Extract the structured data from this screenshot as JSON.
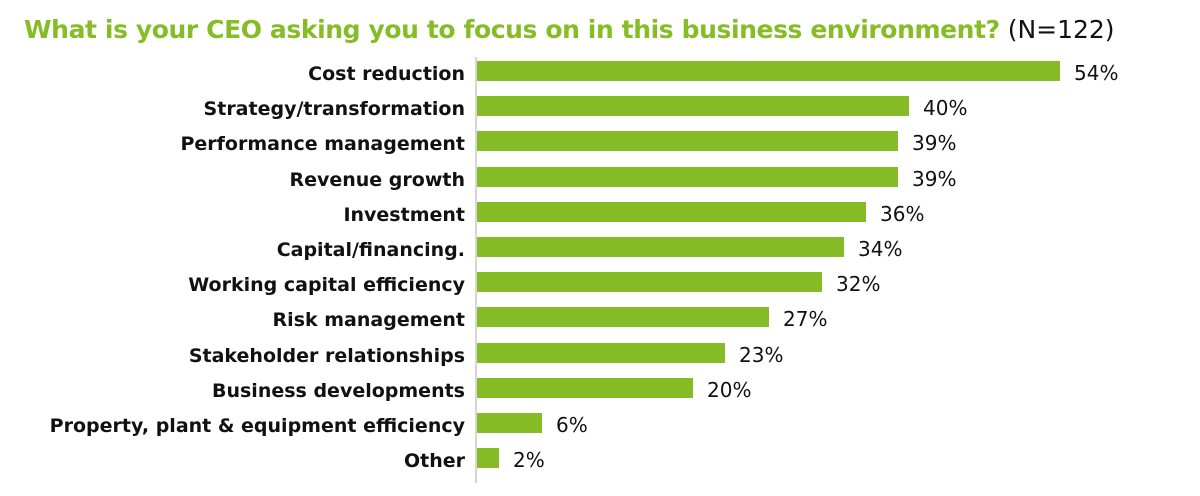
{
  "title": {
    "question": "What is your CEO asking you to focus on in this business environment?",
    "sample": "(N=122)"
  },
  "colors": {
    "bar": "#86bc25",
    "title": "#86bc25",
    "axis": "#d6d6d6"
  },
  "rows": [
    {
      "label": "Cost reduction",
      "value": "54%"
    },
    {
      "label": "Strategy/transformation",
      "value": "40%"
    },
    {
      "label": "Performance management",
      "value": "39%"
    },
    {
      "label": "Revenue growth",
      "value": "39%"
    },
    {
      "label": "Investment",
      "value": "36%"
    },
    {
      "label": "Capital/financing.",
      "value": "34%"
    },
    {
      "label": "Working capital efficiency",
      "value": "32%"
    },
    {
      "label": "Risk management",
      "value": "27%"
    },
    {
      "label": "Stakeholder relationships",
      "value": "23%"
    },
    {
      "label": "Business developments",
      "value": "20%"
    },
    {
      "label": "Property, plant & equipment efficiency",
      "value": "6%"
    },
    {
      "label": "Other",
      "value": "2%"
    }
  ],
  "chart_data": {
    "type": "bar",
    "orientation": "horizontal",
    "title": "What is your CEO asking you to focus on in this business environment? (N=122)",
    "categories": [
      "Cost reduction",
      "Strategy/transformation",
      "Performance management",
      "Revenue growth",
      "Investment",
      "Capital/financing.",
      "Working capital efficiency",
      "Risk management",
      "Stakeholder relationships",
      "Business developments",
      "Property, plant & equipment efficiency",
      "Other"
    ],
    "values": [
      54,
      40,
      39,
      39,
      36,
      34,
      32,
      27,
      23,
      20,
      6,
      2
    ],
    "unit": "%",
    "xlabel": "",
    "ylabel": "",
    "xlim": [
      0,
      60
    ],
    "grid": false,
    "legend": null,
    "data_labels": true
  }
}
